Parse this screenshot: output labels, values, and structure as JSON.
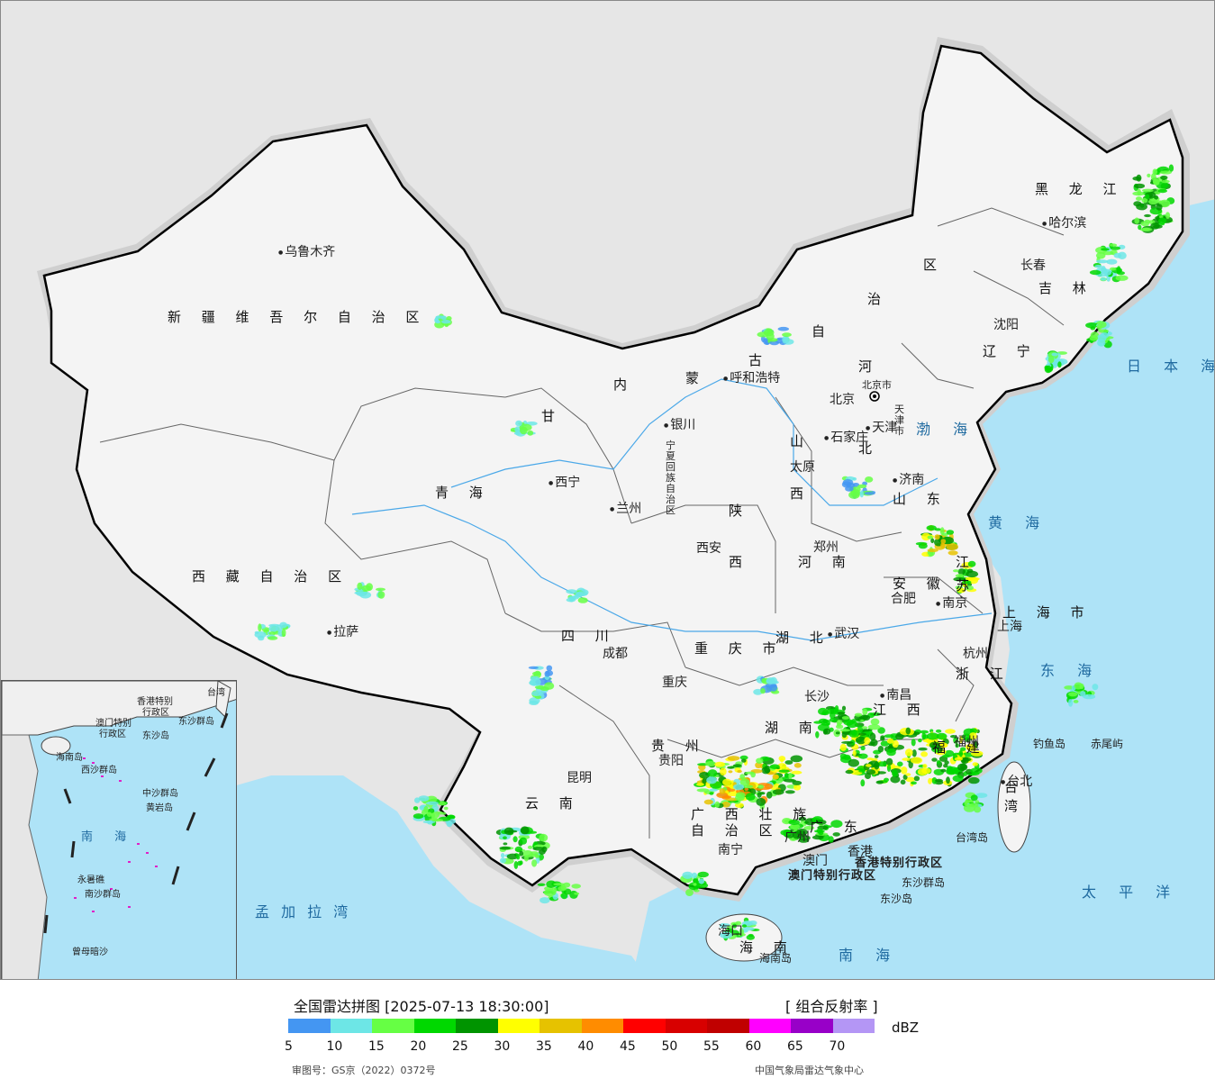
{
  "map": {
    "regions": [
      "新 疆 维 吾 尔 自 治 区",
      "西 藏 自 治 区",
      "青 海",
      "甘",
      "内",
      "蒙",
      "古",
      "自",
      "治",
      "区",
      "黑 龙 江",
      "吉 林",
      "辽 宁",
      "河",
      "北",
      "山",
      "西",
      "陕",
      "西",
      "河 南",
      "山 东",
      "四 川",
      "重 庆 市",
      "湖 北",
      "湖 南",
      "贵 州",
      "云 南",
      "广 西 壮 族",
      "自 治 区",
      "广 东",
      "江 西",
      "福 建",
      "浙 江",
      "安 徽",
      "江",
      "苏",
      "上 海 市",
      "台 湾",
      "海 南"
    ],
    "cities": [
      "乌鲁木齐",
      "拉萨",
      "西宁",
      "兰州",
      "银川",
      "宁夏回族自治区",
      "呼和浩特",
      "北京",
      "北京市",
      "天津",
      "天津市",
      "石家庄",
      "太原",
      "济南",
      "郑州",
      "西安",
      "成都",
      "重庆",
      "武汉",
      "合肥",
      "南京",
      "上海",
      "杭州",
      "南昌",
      "长沙",
      "贵阳",
      "昆明",
      "南宁",
      "广州",
      "香港",
      "澳门",
      "福州",
      "台北",
      "哈尔滨",
      "长春",
      "沈阳",
      "海口"
    ],
    "seas": [
      "日 本 海",
      "渤 海",
      "黄 海",
      "东 海",
      "南 海",
      "太 平 洋",
      "孟 加 拉 湾"
    ],
    "islands": [
      "钓鱼岛",
      "赤尾屿",
      "台湾岛",
      "东沙群岛",
      "东沙岛",
      "海南岛"
    ],
    "sar": [
      "香港特别行政区",
      "澳门特别行政区"
    ],
    "inset_labels": [
      "香港特别",
      "行政区",
      "澳门特别",
      "行政区",
      "东沙群岛",
      "东沙岛",
      "海南岛",
      "西沙群岛",
      "中沙群岛",
      "黄岩岛",
      "南 海",
      "永暑礁",
      "南沙群岛",
      "曾母暗沙",
      "台湾"
    ]
  },
  "legend": {
    "title": "全国雷达拼图 [2025-07-13 18:30:00]",
    "product": "[ 组合反射率 ]",
    "unit": "dBZ",
    "levels": [
      "5",
      "10",
      "15",
      "20",
      "25",
      "30",
      "35",
      "40",
      "45",
      "50",
      "55",
      "60",
      "65",
      "70"
    ],
    "colors": [
      "#4496f2",
      "#6de6e6",
      "#66ff44",
      "#00d800",
      "#009400",
      "#ffff00",
      "#e6c200",
      "#ff8c00",
      "#ff0000",
      "#d80000",
      "#c00000",
      "#ff00ff",
      "#9800c8",
      "#b496f5"
    ],
    "approval": "审图号：GS京（2022）0372号",
    "source": "中国气象局雷达气象中心"
  },
  "colors": {
    "land": "#f4f4f4",
    "ocean": "#aee3f7",
    "foreign": "#e6e6e6",
    "border": "#000000",
    "river": "#4aa8e8"
  }
}
